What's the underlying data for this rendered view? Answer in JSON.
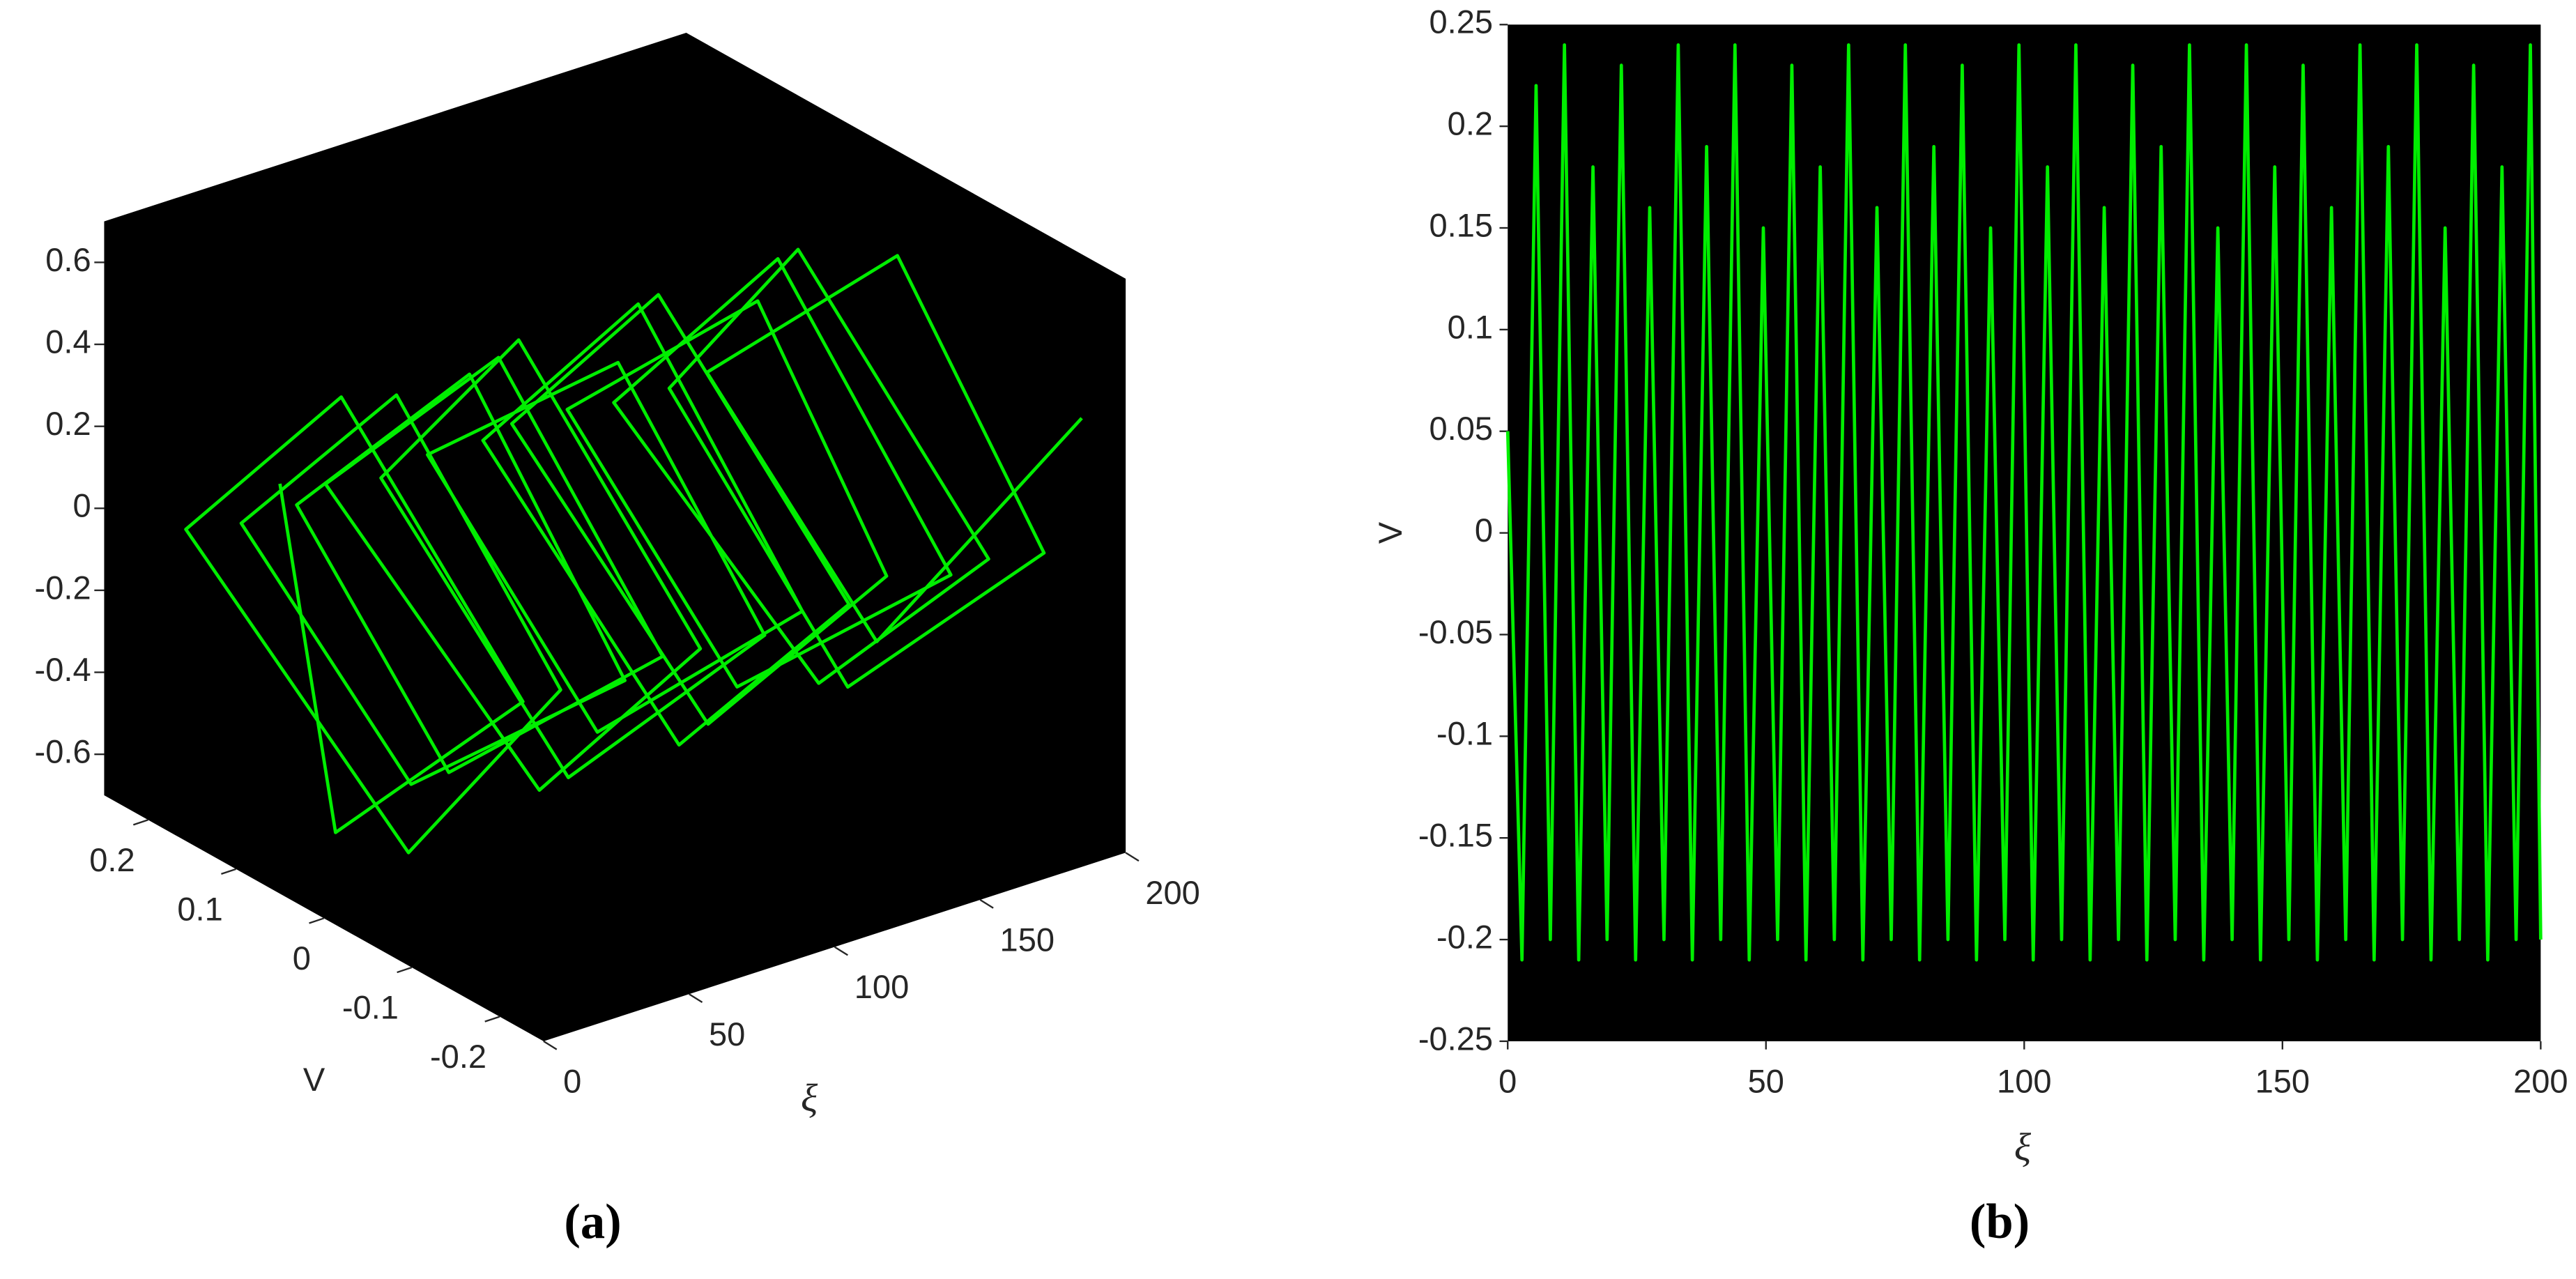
{
  "chart_data": [
    {
      "type": "line3d",
      "caption": "(a)",
      "x_label": "ξ",
      "y_label": "V",
      "color": "#00ee00",
      "background": "#000000",
      "x": [
        0,
        4,
        8,
        12,
        16,
        20,
        24,
        28,
        32,
        36,
        40,
        44,
        48,
        52,
        56,
        60,
        64,
        68,
        72,
        76,
        80,
        84,
        88,
        92,
        96,
        100,
        104,
        108,
        112,
        116,
        120,
        124,
        128,
        132,
        136,
        140,
        144,
        148,
        152,
        156,
        160,
        164,
        168,
        172,
        176,
        180,
        184,
        188,
        192,
        196,
        200
      ],
      "y": [
        0.05,
        0,
        -0.2,
        0.02,
        0.21,
        -0.03,
        -0.19,
        0.01,
        0.2,
        0.02,
        -0.21,
        -0.02,
        0.19,
        0.03,
        -0.2,
        0,
        0.21,
        -0.02,
        -0.19,
        0.03,
        0.2,
        0,
        -0.21,
        -0.03,
        0.2,
        0.02,
        -0.2,
        0,
        0.19,
        -0.02,
        -0.2,
        0.03,
        0.21,
        0,
        -0.19,
        -0.03,
        0.2,
        0.02,
        -0.21,
        0,
        0.2,
        -0.02,
        -0.2,
        0.03,
        0.19,
        0,
        -0.21,
        -0.03,
        0.2,
        0.02,
        -0.2
      ],
      "z": [
        0.3,
        -0.5,
        0.05,
        0.52,
        -0.04,
        -0.55,
        0.03,
        0.5,
        -0.05,
        -0.48,
        0.04,
        0.55,
        -0.03,
        -0.5,
        0.05,
        0.53,
        -0.04,
        -0.52,
        0.02,
        0.5,
        -0.05,
        -0.55,
        0.04,
        0.48,
        -0.03,
        -0.5,
        0.05,
        0.55,
        -0.02,
        -0.52,
        0.03,
        0.5,
        -0.04,
        -0.53,
        0.05,
        0.52,
        -0.03,
        -0.5,
        0.04,
        0.55,
        -0.05,
        -0.48,
        0.03,
        0.5,
        -0.04,
        -0.55,
        0.02,
        0.52,
        -0.05,
        -0.5,
        0.3
      ],
      "xlim": [
        0,
        200
      ],
      "ylim": [
        -0.25,
        0.25
      ],
      "zlim": [
        -0.7,
        0.7
      ],
      "xticks": [
        0,
        50,
        100,
        150,
        200
      ],
      "yticks": [
        -0.2,
        -0.1,
        0,
        0.1,
        0.2
      ],
      "zticks": [
        -0.6,
        -0.4,
        -0.2,
        0,
        0.2,
        0.4,
        0.6
      ]
    },
    {
      "type": "line",
      "caption": "(b)",
      "x_label": "ξ",
      "y_label": "V",
      "color": "#00ee00",
      "background": "#000000",
      "x": [
        0,
        2.75,
        5.5,
        8.25,
        11,
        13.75,
        16.5,
        19.25,
        22,
        24.75,
        27.5,
        30.25,
        33,
        35.75,
        38.5,
        41.25,
        44,
        46.75,
        49.5,
        52.25,
        55,
        57.75,
        60.5,
        63.25,
        66,
        68.75,
        71.5,
        74.25,
        77,
        79.75,
        82.5,
        85.25,
        88,
        90.75,
        93.5,
        96.25,
        99,
        101.75,
        104.5,
        107.25,
        110,
        112.75,
        115.5,
        118.25,
        121,
        123.75,
        126.5,
        129.25,
        132,
        134.75,
        137.5,
        140.25,
        143,
        145.75,
        148.5,
        151.25,
        154,
        156.75,
        159.5,
        162.25,
        165,
        167.75,
        170.5,
        173.25,
        176,
        178.75,
        181.5,
        184.25,
        187,
        189.75,
        192.5,
        195.25,
        198,
        200
      ],
      "values": [
        0.05,
        -0.21,
        0.22,
        -0.2,
        0.24,
        -0.21,
        0.18,
        -0.2,
        0.23,
        -0.21,
        0.16,
        -0.2,
        0.24,
        -0.21,
        0.19,
        -0.2,
        0.24,
        -0.21,
        0.15,
        -0.2,
        0.23,
        -0.21,
        0.18,
        -0.2,
        0.24,
        -0.21,
        0.16,
        -0.2,
        0.24,
        -0.21,
        0.19,
        -0.2,
        0.23,
        -0.21,
        0.15,
        -0.2,
        0.24,
        -0.21,
        0.18,
        -0.2,
        0.24,
        -0.21,
        0.16,
        -0.2,
        0.23,
        -0.21,
        0.19,
        -0.2,
        0.24,
        -0.21,
        0.15,
        -0.2,
        0.24,
        -0.21,
        0.18,
        -0.2,
        0.23,
        -0.21,
        0.16,
        -0.2,
        0.24,
        -0.21,
        0.19,
        -0.2,
        0.24,
        -0.21,
        0.15,
        -0.2,
        0.23,
        -0.21,
        0.18,
        -0.2,
        0.24,
        -0.2
      ],
      "xlim": [
        0,
        200
      ],
      "ylim": [
        -0.25,
        0.25
      ],
      "xticks": [
        0,
        50,
        100,
        150,
        200
      ],
      "yticks": [
        -0.25,
        -0.2,
        -0.15,
        -0.1,
        -0.05,
        0,
        0.05,
        0.1,
        0.15,
        0.2,
        0.25
      ]
    }
  ]
}
